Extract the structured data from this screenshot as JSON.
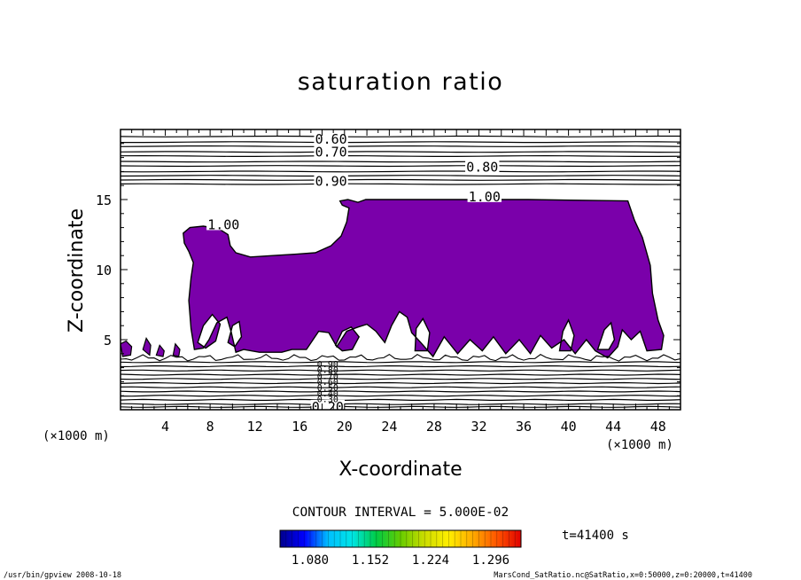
{
  "chart_data": {
    "type": "contour",
    "title": "saturation ratio",
    "xlabel": "X-coordinate",
    "ylabel": "Z-coordinate",
    "x_unit": "(×1000 m)",
    "z_unit": "(×1000 m)",
    "x_range": [
      0,
      50
    ],
    "z_range": [
      0,
      20
    ],
    "x_ticks": [
      4,
      8,
      12,
      16,
      20,
      24,
      28,
      32,
      36,
      40,
      44,
      48
    ],
    "z_ticks": [
      5,
      10,
      15
    ],
    "contour_interval": "CONTOUR INTERVAL = 5.000E-02",
    "time_label": "t=41400 s",
    "colorbar": {
      "tick_labels": [
        "1.080",
        "1.152",
        "1.224",
        "1.296"
      ],
      "min": 1.044,
      "max": 1.332,
      "colors": [
        "#00008b",
        "#0000ff",
        "#00bfff",
        "#00e5e5",
        "#00cc44",
        "#66cc00",
        "#ccdd00",
        "#ffee00",
        "#ffaa00",
        "#ff5500",
        "#e00000"
      ]
    },
    "fill_color": "#7a00aa",
    "contour_labels": [
      {
        "text": "0.60",
        "x": 18.8,
        "z": 19.3
      },
      {
        "text": "0.70",
        "x": 18.8,
        "z": 18.4
      },
      {
        "text": "0.80",
        "x": 32.3,
        "z": 17.3
      },
      {
        "text": "0.90",
        "x": 18.8,
        "z": 16.3
      },
      {
        "text": "1.00",
        "x": 32.5,
        "z": 15.2
      },
      {
        "text": "1.00",
        "x": 9.2,
        "z": 13.2
      },
      {
        "text": "0.20",
        "x": 18.5,
        "z": 0.2
      }
    ],
    "upper_contour_levels_z": [
      19.5,
      19.1,
      18.8,
      18.4,
      18.1,
      17.7,
      17.4,
      17.0,
      16.7,
      16.4,
      16.1
    ],
    "lower_contour_levels_z": [
      3.4,
      3.1,
      2.8,
      2.5,
      2.2,
      1.9,
      1.6,
      1.3,
      1.0,
      0.7,
      0.4,
      0.2
    ],
    "supersaturated_region_outline": [
      [
        5.6,
        12.6
      ],
      [
        6.2,
        13.0
      ],
      [
        7.4,
        13.1
      ],
      [
        8.8,
        12.9
      ],
      [
        9.6,
        12.5
      ],
      [
        9.8,
        11.7
      ],
      [
        10.3,
        11.2
      ],
      [
        11.6,
        10.9
      ],
      [
        13.6,
        11.0
      ],
      [
        15.7,
        11.1
      ],
      [
        17.4,
        11.2
      ],
      [
        18.8,
        11.7
      ],
      [
        19.7,
        12.4
      ],
      [
        20.2,
        13.4
      ],
      [
        20.4,
        14.4
      ],
      [
        19.8,
        14.6
      ],
      [
        19.6,
        14.9
      ],
      [
        20.3,
        15.0
      ],
      [
        21.2,
        14.8
      ],
      [
        21.9,
        15.0
      ],
      [
        35.1,
        15.0
      ],
      [
        36.4,
        15.0
      ],
      [
        45.3,
        14.9
      ],
      [
        45.9,
        13.5
      ],
      [
        46.6,
        12.3
      ],
      [
        47.3,
        10.3
      ],
      [
        47.5,
        8.3
      ],
      [
        48.0,
        6.4
      ],
      [
        48.5,
        5.3
      ],
      [
        48.3,
        4.3
      ],
      [
        47.0,
        4.2
      ],
      [
        46.4,
        5.6
      ],
      [
        45.6,
        5.0
      ],
      [
        44.8,
        5.7
      ],
      [
        44.4,
        4.5
      ],
      [
        43.5,
        3.7
      ],
      [
        42.4,
        4.2
      ],
      [
        41.6,
        5.0
      ],
      [
        40.6,
        4.0
      ],
      [
        39.6,
        5.0
      ],
      [
        38.5,
        4.4
      ],
      [
        37.5,
        5.3
      ],
      [
        36.6,
        4.0
      ],
      [
        35.6,
        5.0
      ],
      [
        34.4,
        4.0
      ],
      [
        33.3,
        5.2
      ],
      [
        32.3,
        4.2
      ],
      [
        31.2,
        5.0
      ],
      [
        30.1,
        4.0
      ],
      [
        28.9,
        5.2
      ],
      [
        27.9,
        3.8
      ],
      [
        26.8,
        4.8
      ],
      [
        26.0,
        5.5
      ],
      [
        25.6,
        6.6
      ],
      [
        24.9,
        7.0
      ],
      [
        24.2,
        6.0
      ],
      [
        23.6,
        4.8
      ],
      [
        22.8,
        5.6
      ],
      [
        22.0,
        6.1
      ],
      [
        21.2,
        5.9
      ],
      [
        20.2,
        5.6
      ],
      [
        19.3,
        4.5
      ],
      [
        18.6,
        5.5
      ],
      [
        17.7,
        5.6
      ],
      [
        16.6,
        4.3
      ],
      [
        15.3,
        4.3
      ],
      [
        14.4,
        4.1
      ],
      [
        12.4,
        4.1
      ],
      [
        11.0,
        4.3
      ],
      [
        10.3,
        4.1
      ],
      [
        9.9,
        5.5
      ],
      [
        9.5,
        6.6
      ],
      [
        8.6,
        6.2
      ],
      [
        7.9,
        5.0
      ],
      [
        7.4,
        4.4
      ],
      [
        6.6,
        4.3
      ],
      [
        6.3,
        5.8
      ],
      [
        6.1,
        7.8
      ],
      [
        6.3,
        9.4
      ],
      [
        6.5,
        10.5
      ],
      [
        6.1,
        11.3
      ],
      [
        5.7,
        11.9
      ]
    ],
    "holes": [
      [
        [
          6.9,
          4.8
        ],
        [
          7.4,
          6.0
        ],
        [
          8.2,
          6.8
        ],
        [
          8.9,
          6.1
        ],
        [
          8.5,
          4.9
        ],
        [
          7.6,
          4.4
        ]
      ],
      [
        [
          9.6,
          4.8
        ],
        [
          10.0,
          6.0
        ],
        [
          10.6,
          6.3
        ],
        [
          10.8,
          5.2
        ],
        [
          10.2,
          4.5
        ]
      ],
      [
        [
          19.2,
          4.6
        ],
        [
          19.8,
          5.6
        ],
        [
          20.6,
          5.9
        ],
        [
          21.3,
          5.2
        ],
        [
          20.7,
          4.3
        ],
        [
          19.8,
          4.2
        ]
      ],
      [
        [
          26.3,
          4.2
        ],
        [
          26.4,
          5.8
        ],
        [
          27.0,
          6.5
        ],
        [
          27.6,
          5.5
        ],
        [
          27.4,
          4.2
        ]
      ],
      [
        [
          39.2,
          4.2
        ],
        [
          39.5,
          5.6
        ],
        [
          40.0,
          6.4
        ],
        [
          40.5,
          5.3
        ],
        [
          40.2,
          4.2
        ]
      ],
      [
        [
          42.6,
          4.3
        ],
        [
          43.2,
          5.7
        ],
        [
          43.8,
          6.2
        ],
        [
          44.1,
          5.0
        ],
        [
          43.6,
          4.3
        ]
      ]
    ],
    "left_patches": [
      [
        [
          0.0,
          4.7
        ],
        [
          0.5,
          4.9
        ],
        [
          1.0,
          4.5
        ],
        [
          0.9,
          3.9
        ],
        [
          0.2,
          3.8
        ]
      ],
      [
        [
          2.0,
          4.3
        ],
        [
          2.3,
          5.1
        ],
        [
          2.7,
          4.6
        ],
        [
          2.6,
          3.9
        ]
      ],
      [
        [
          3.2,
          3.9
        ],
        [
          3.5,
          4.6
        ],
        [
          3.9,
          4.2
        ],
        [
          3.8,
          3.8
        ]
      ],
      [
        [
          4.7,
          3.9
        ],
        [
          4.9,
          4.7
        ],
        [
          5.3,
          4.3
        ],
        [
          5.2,
          3.8
        ]
      ]
    ],
    "lower_contour_labels": [
      "0.90",
      "0.80",
      "0.70",
      "0.60",
      "0.50",
      "0.40",
      "0.30"
    ]
  },
  "footer": {
    "left": "/usr/bin/gpview   2008-10-18",
    "right": "MarsCond_SatRatio.nc@SatRatio,x=0:50000,z=0:20000,t=41400"
  }
}
